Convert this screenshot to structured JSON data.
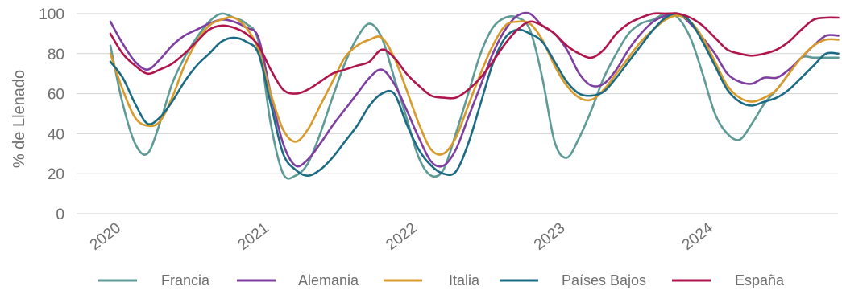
{
  "chart_data": {
    "type": "line",
    "title": "",
    "xlabel": "",
    "ylabel": "% de Llenado",
    "ylim": [
      0,
      100
    ],
    "yticks": [
      0,
      20,
      40,
      60,
      80,
      100
    ],
    "xlim": [
      2020.0,
      2024.92
    ],
    "xticks": [
      {
        "value": 2020.0,
        "label": "2020"
      },
      {
        "value": 2021.0,
        "label": "2021"
      },
      {
        "value": 2022.0,
        "label": "2022"
      },
      {
        "value": 2023.0,
        "label": "2023"
      },
      {
        "value": 2024.0,
        "label": "2024"
      }
    ],
    "grid": true,
    "legend_position": "bottom",
    "x": [
      2020.0,
      2020.083,
      2020.167,
      2020.25,
      2020.333,
      2020.417,
      2020.5,
      2020.583,
      2020.667,
      2020.75,
      2020.833,
      2020.917,
      2021.0,
      2021.083,
      2021.167,
      2021.25,
      2021.333,
      2021.417,
      2021.5,
      2021.583,
      2021.667,
      2021.75,
      2021.833,
      2021.917,
      2022.0,
      2022.083,
      2022.167,
      2022.25,
      2022.333,
      2022.417,
      2022.5,
      2022.583,
      2022.667,
      2022.75,
      2022.833,
      2022.917,
      2023.0,
      2023.083,
      2023.167,
      2023.25,
      2023.333,
      2023.417,
      2023.5,
      2023.583,
      2023.667,
      2023.75,
      2023.833,
      2023.917,
      2024.0,
      2024.083,
      2024.167,
      2024.25,
      2024.333,
      2024.417,
      2024.5,
      2024.583,
      2024.667,
      2024.75,
      2024.833,
      2024.917
    ],
    "series": [
      {
        "name": "Francia",
        "color": "#5e9a96",
        "values": [
          84,
          55,
          35,
          30,
          45,
          65,
          78,
          88,
          96,
          100,
          98,
          95,
          86,
          45,
          20,
          19,
          25,
          40,
          58,
          75,
          88,
          95,
          88,
          68,
          48,
          28,
          19,
          22,
          40,
          60,
          80,
          93,
          98,
          98,
          92,
          68,
          36,
          28,
          38,
          52,
          68,
          80,
          90,
          95,
          97,
          100,
          98,
          88,
          70,
          50,
          40,
          37,
          45,
          55,
          62,
          70,
          78,
          78,
          78,
          78
        ]
      },
      {
        "name": "Alemania",
        "color": "#7e3fa0",
        "values": [
          96,
          85,
          76,
          72,
          77,
          84,
          89,
          92,
          95,
          97,
          96,
          93,
          88,
          60,
          35,
          24,
          27,
          35,
          44,
          52,
          60,
          68,
          72,
          65,
          52,
          38,
          26,
          24,
          32,
          48,
          64,
          80,
          92,
          99,
          100,
          94,
          90,
          82,
          70,
          64,
          65,
          72,
          82,
          90,
          96,
          99,
          100,
          95,
          88,
          80,
          70,
          66,
          65,
          68,
          68,
          72,
          78,
          84,
          89,
          89
        ]
      },
      {
        "name": "Italia",
        "color": "#d89a2a",
        "values": [
          80,
          62,
          48,
          44,
          46,
          58,
          74,
          86,
          94,
          97,
          98,
          93,
          82,
          60,
          42,
          36,
          42,
          54,
          66,
          78,
          84,
          87,
          88,
          78,
          62,
          45,
          32,
          30,
          38,
          54,
          70,
          84,
          94,
          96,
          95,
          87,
          74,
          64,
          58,
          57,
          62,
          70,
          78,
          86,
          92,
          97,
          99,
          96,
          88,
          76,
          64,
          58,
          56,
          58,
          62,
          70,
          78,
          84,
          87,
          87
        ]
      },
      {
        "name": "Países Bajos",
        "color": "#1c6b84",
        "values": [
          76,
          68,
          55,
          45,
          48,
          56,
          66,
          74,
          80,
          86,
          88,
          86,
          80,
          55,
          30,
          22,
          19,
          22,
          28,
          36,
          44,
          54,
          60,
          60,
          45,
          32,
          24,
          20,
          21,
          35,
          55,
          75,
          88,
          92,
          90,
          86,
          76,
          66,
          60,
          59,
          61,
          68,
          76,
          84,
          92,
          98,
          100,
          96,
          86,
          74,
          62,
          56,
          54,
          56,
          58,
          62,
          68,
          74,
          80,
          80
        ]
      },
      {
        "name": "España",
        "color": "#b0144d",
        "values": [
          90,
          80,
          74,
          70,
          72,
          75,
          80,
          86,
          92,
          94,
          93,
          90,
          84,
          72,
          62,
          60,
          62,
          66,
          70,
          72,
          74,
          76,
          82,
          78,
          70,
          64,
          59,
          58,
          58,
          62,
          68,
          76,
          85,
          92,
          96,
          94,
          90,
          84,
          80,
          78,
          82,
          90,
          95,
          98,
          100,
          100,
          100,
          98,
          94,
          88,
          82,
          80,
          79,
          80,
          82,
          86,
          92,
          97,
          98,
          98
        ]
      }
    ]
  }
}
